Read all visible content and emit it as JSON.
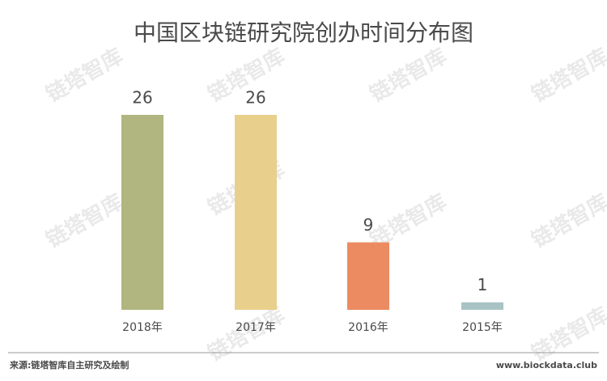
{
  "chart_data": {
    "type": "bar",
    "title": "中国区块链研究院创办时间分布图",
    "categories": [
      "2018年",
      "2017年",
      "2016年",
      "2015年"
    ],
    "values": [
      26,
      26,
      9,
      1
    ],
    "colors": [
      "#b1b57f",
      "#e8d08c",
      "#ec8b62",
      "#a9c3c4"
    ],
    "ylim": [
      0,
      26
    ],
    "source": "来源:链塔智库自主研究及绘制",
    "website": "www.biockdata.club",
    "watermark": "链塔智库"
  }
}
